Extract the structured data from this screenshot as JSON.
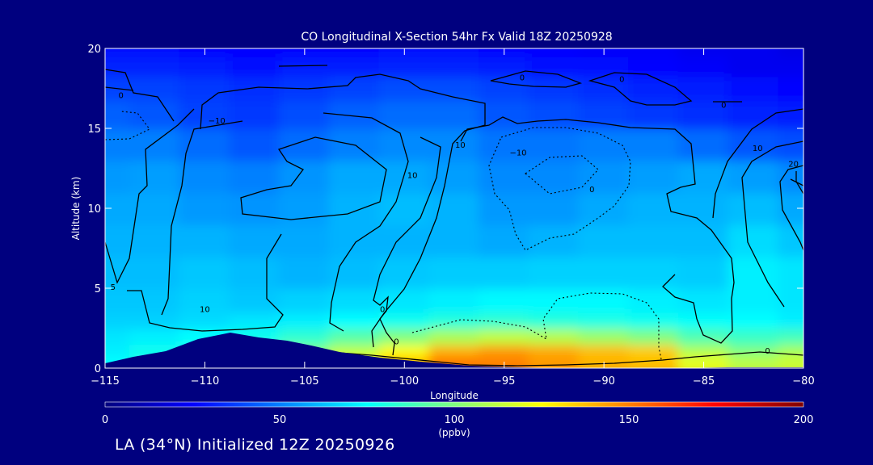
{
  "chart_data": {
    "type": "heatmap",
    "title": "CO Longitudinal X-Section 54hr  Fx Valid 18Z 20250928",
    "xlabel": "Longitude",
    "ylabel": "Altitude (km)",
    "xlim": [
      -115,
      -80
    ],
    "ylim": [
      0,
      20
    ],
    "x_ticks": [
      -115,
      -110,
      -105,
      -100,
      -95,
      -90,
      -85,
      -80
    ],
    "x_tick_labels": [
      "−115",
      "−110",
      "−105",
      "−100",
      "−95",
      "−90",
      "−85",
      "−80"
    ],
    "y_ticks": [
      0,
      5,
      10,
      15,
      20
    ],
    "y_tick_labels": [
      "0",
      "5",
      "10",
      "15",
      "20"
    ],
    "colorbar": {
      "min": 0,
      "max": 200,
      "ticks": [
        0,
        50,
        100,
        150,
        200
      ],
      "tick_labels": [
        "0",
        "50",
        "100",
        "150",
        "200"
      ],
      "units": "(ppbv)",
      "colors": [
        "#00007f",
        "#0000ff",
        "#0080ff",
        "#00ffff",
        "#80ff80",
        "#ffff00",
        "#ff8000",
        "#ff0000",
        "#800000"
      ]
    },
    "lon_grid": [
      -115,
      -112.5,
      -110,
      -107.5,
      -105,
      -102.5,
      -100,
      -97.5,
      -95,
      -92.5,
      -90,
      -87.5,
      -85,
      -82.5,
      -80
    ],
    "alt_grid": [
      0.5,
      1,
      2,
      3,
      4,
      6,
      8,
      10,
      12,
      14,
      16,
      17.5,
      19,
      20
    ],
    "co_ppbv": [
      [
        75,
        80,
        85,
        95,
        110,
        122,
        138,
        152,
        150,
        145,
        140,
        138,
        120,
        112,
        115
      ],
      [
        72,
        78,
        80,
        88,
        100,
        112,
        125,
        140,
        145,
        142,
        138,
        135,
        110,
        100,
        108
      ],
      [
        70,
        72,
        75,
        78,
        84,
        92,
        100,
        108,
        112,
        110,
        105,
        100,
        90,
        86,
        88
      ],
      [
        66,
        66,
        68,
        70,
        72,
        75,
        78,
        82,
        84,
        82,
        80,
        78,
        76,
        75,
        72
      ],
      [
        64,
        64,
        66,
        64,
        66,
        68,
        70,
        72,
        74,
        74,
        74,
        72,
        70,
        72,
        70
      ],
      [
        62,
        62,
        64,
        62,
        60,
        62,
        64,
        65,
        65,
        66,
        66,
        66,
        65,
        72,
        70
      ],
      [
        60,
        60,
        60,
        58,
        58,
        60,
        60,
        60,
        58,
        60,
        62,
        62,
        62,
        68,
        64
      ],
      [
        58,
        58,
        55,
        54,
        56,
        60,
        62,
        60,
        55,
        55,
        58,
        60,
        60,
        62,
        58
      ],
      [
        55,
        56,
        52,
        50,
        54,
        58,
        58,
        56,
        52,
        52,
        54,
        56,
        58,
        56,
        52
      ],
      [
        50,
        50,
        46,
        42,
        46,
        50,
        52,
        52,
        48,
        48,
        50,
        50,
        46,
        42,
        40
      ],
      [
        44,
        42,
        38,
        36,
        40,
        44,
        46,
        46,
        42,
        40,
        38,
        36,
        34,
        32,
        30
      ],
      [
        38,
        38,
        36,
        34,
        36,
        38,
        40,
        40,
        38,
        36,
        34,
        32,
        30,
        28,
        26
      ],
      [
        32,
        32,
        30,
        28,
        30,
        30,
        32,
        32,
        30,
        28,
        28,
        26,
        24,
        22,
        22
      ],
      [
        28,
        28,
        26,
        26,
        26,
        26,
        28,
        28,
        26,
        26,
        24,
        24,
        22,
        22,
        20
      ]
    ],
    "contour_labels": [
      {
        "text": "0",
        "lon": -114.2,
        "alt": 17.1
      },
      {
        "text": "0",
        "lon": -94.1,
        "alt": 18.2
      },
      {
        "text": "0",
        "lon": -89.1,
        "alt": 18.1
      },
      {
        "text": "0",
        "lon": -84.0,
        "alt": 16.5
      },
      {
        "text": "−10",
        "lon": -109.4,
        "alt": 15.5
      },
      {
        "text": "10",
        "lon": -97.2,
        "alt": 14.0
      },
      {
        "text": "−10",
        "lon": -94.3,
        "alt": 13.5
      },
      {
        "text": "10",
        "lon": -99.6,
        "alt": 12.1
      },
      {
        "text": "0",
        "lon": -90.6,
        "alt": 11.2
      },
      {
        "text": "10",
        "lon": -82.3,
        "alt": 13.8
      },
      {
        "text": "20",
        "lon": -80.5,
        "alt": 12.8
      },
      {
        "text": "5",
        "lon": -114.6,
        "alt": 5.1
      },
      {
        "text": "10",
        "lon": -110.0,
        "alt": 3.7
      },
      {
        "text": "0",
        "lon": -101.1,
        "alt": 3.7
      },
      {
        "text": "0",
        "lon": -100.4,
        "alt": 1.7
      },
      {
        "text": "0",
        "lon": -81.8,
        "alt": 1.1
      }
    ],
    "grid": false,
    "legend": "colorbar-bottom"
  },
  "caption": "LA (34°N) Initialized 12Z 20250926"
}
